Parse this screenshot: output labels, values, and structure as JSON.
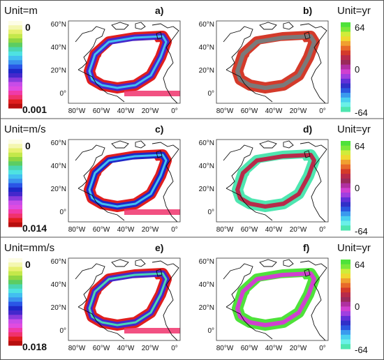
{
  "rows": [
    {
      "left_unit": "Unit=m",
      "left_top": "0",
      "left_bottom": "0.001",
      "right_unit": "Unit=yr",
      "right_ticks": [
        "64",
        "0",
        "-64"
      ],
      "panels": [
        {
          "label": "a)",
          "kind": "magnitude"
        },
        {
          "label": "b)",
          "kind": "phase"
        }
      ]
    },
    {
      "left_unit": "Unit=m/s",
      "left_top": "0",
      "left_bottom": "0.014",
      "right_unit": "Unit=yr",
      "right_ticks": [
        "64",
        "0",
        "-64"
      ],
      "panels": [
        {
          "label": "c)",
          "kind": "magnitude"
        },
        {
          "label": "d)",
          "kind": "phase"
        }
      ]
    },
    {
      "left_unit": "Unit=mm/s",
      "left_top": "0",
      "left_bottom": "0.018",
      "right_unit": "Unit=yr",
      "right_ticks": [
        "64",
        "0",
        "-64"
      ],
      "panels": [
        {
          "label": "e)",
          "kind": "magnitude"
        },
        {
          "label": "f)",
          "kind": "phase"
        }
      ]
    }
  ],
  "lat_labels": [
    "60°N",
    "40°N",
    "20°N",
    "0°"
  ],
  "lon_labels": [
    "80°W",
    "60°W",
    "40°W",
    "20°W",
    "0°"
  ],
  "colors": {
    "mag_scale": [
      "#fdfde6",
      "#f4f7b0",
      "#e7f070",
      "#c4e84a",
      "#8fd642",
      "#5ccd62",
      "#4ad6b0",
      "#4ee2e2",
      "#42bff0",
      "#3a92ee",
      "#2a55e6",
      "#1e28c8",
      "#4428cc",
      "#8a3adc",
      "#c84ce8",
      "#e04ce0",
      "#f03aa8",
      "#f0326c",
      "#e01e1e",
      "#b80e0e"
    ],
    "phase_scale": [
      "#4ee23a",
      "#7ce83a",
      "#d0ec3a",
      "#f0d830",
      "#f0a030",
      "#e86a2a",
      "#d43a2a",
      "#b82a4a",
      "#9a2a5a",
      "#b030a0",
      "#d040d0",
      "#a040e0",
      "#6030d8",
      "#3030c8",
      "#2a58e0",
      "#3a9aee",
      "#4ad0f0",
      "#6af0e8",
      "#4ee6b0"
    ]
  }
}
